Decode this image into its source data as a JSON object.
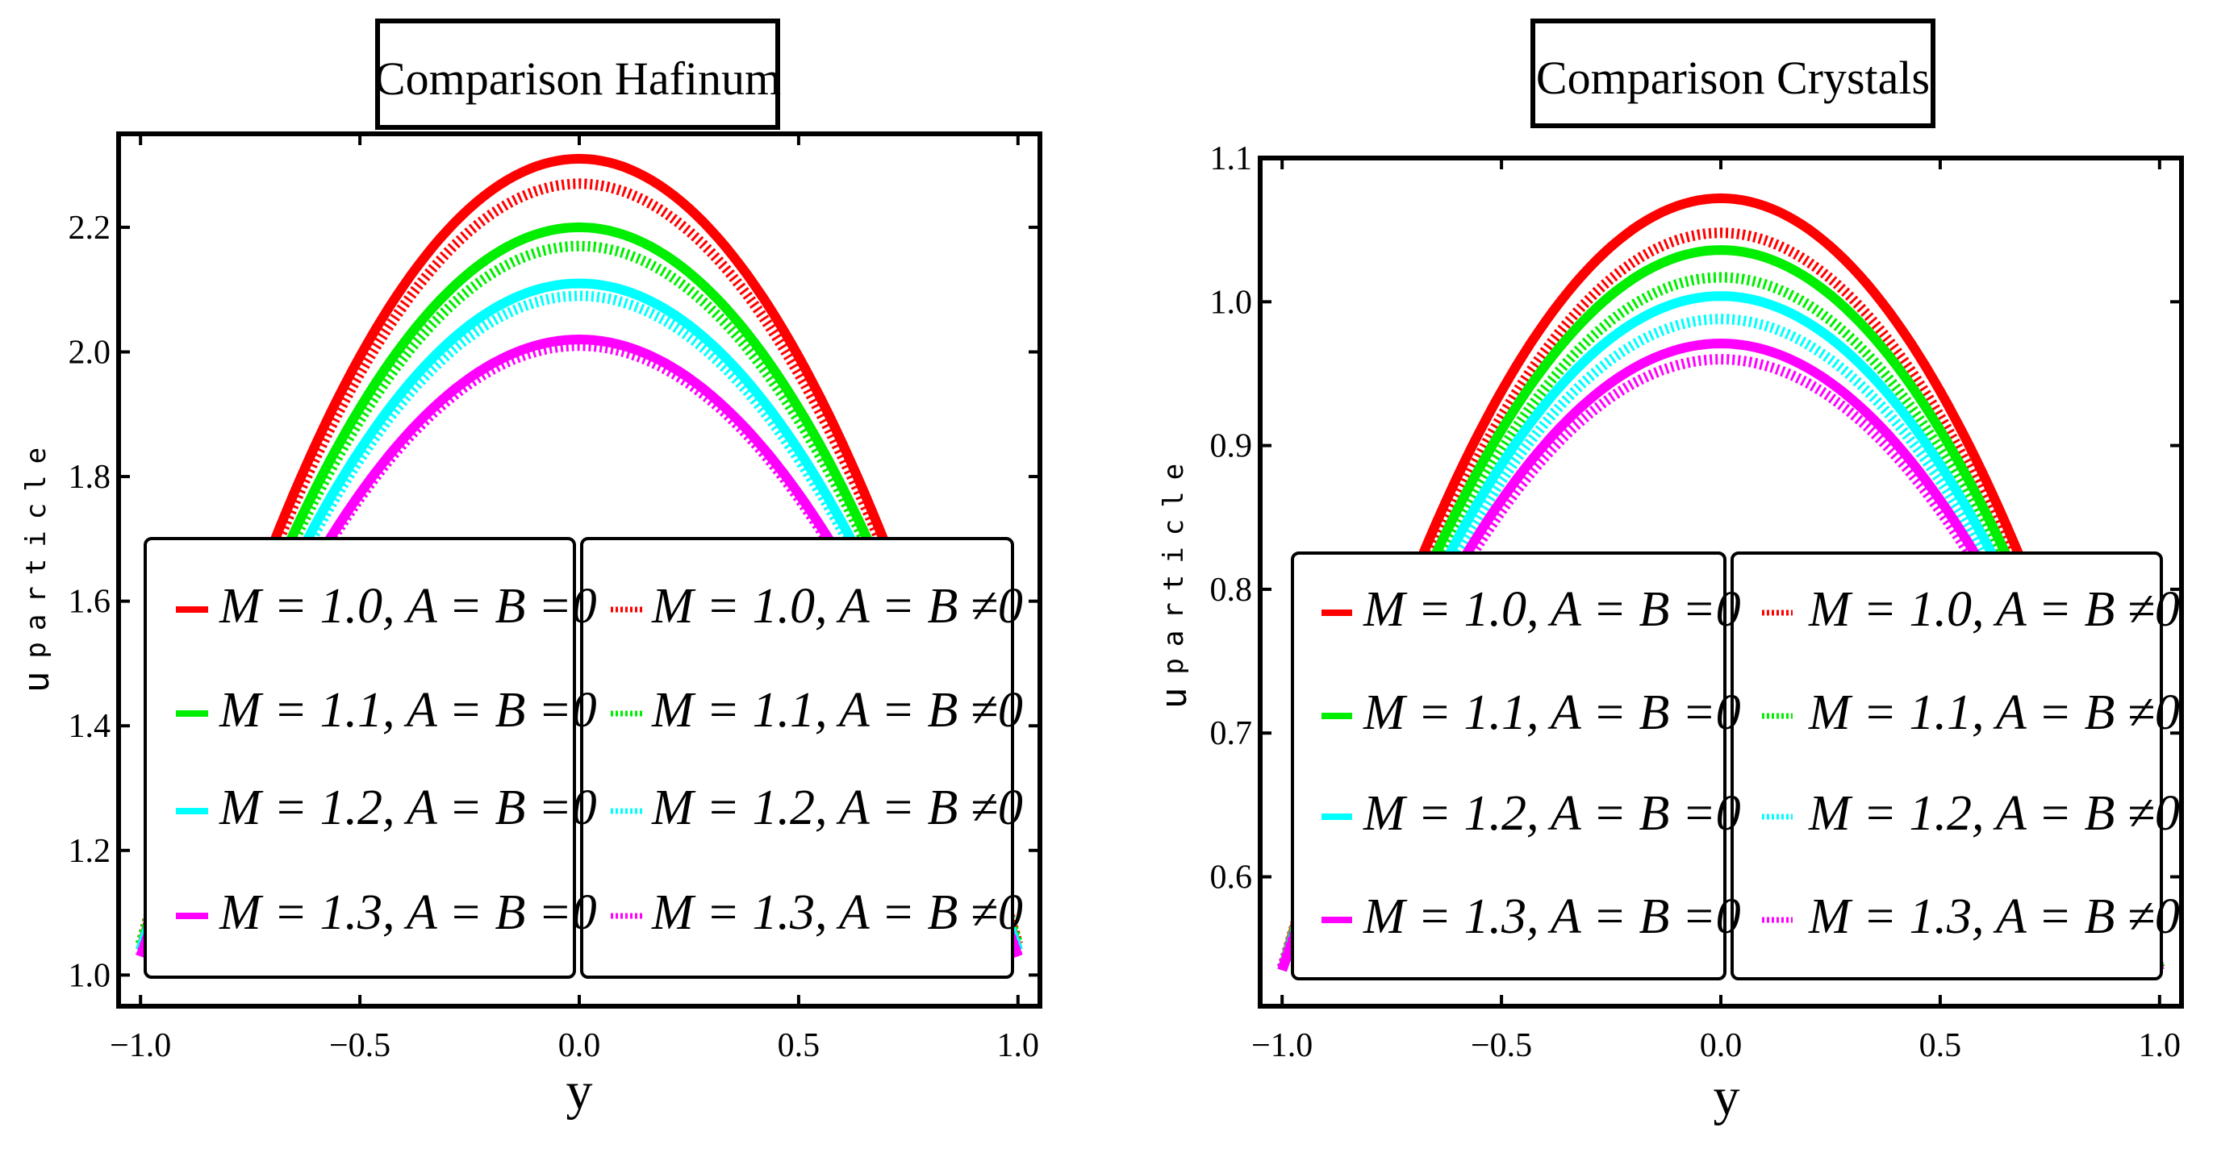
{
  "chart_data": [
    {
      "type": "line",
      "title": "Comparison Hafinum",
      "xlabel": "y",
      "ylabel_main": "u",
      "ylabel_sub": "particle",
      "xlim": [
        -1.05,
        1.05
      ],
      "ylim": [
        0.95,
        2.35
      ],
      "xticks": [
        -1.0,
        -0.5,
        0.0,
        0.5,
        1.0
      ],
      "xtick_labels": [
        "−1.0",
        "−0.5",
        "0.0",
        "0.5",
        "1.0"
      ],
      "yticks": [
        1.0,
        1.2,
        1.4,
        1.6,
        1.8,
        2.0,
        2.2
      ],
      "ytick_labels": [
        "1.0",
        "1.2",
        "1.4",
        "1.6",
        "1.8",
        "2.0",
        "2.2"
      ],
      "grid": false,
      "legend_placement": "bottom-center",
      "series": [
        {
          "name": "M = 1.0, A = B =0",
          "color": "#ff0000",
          "style": "solid",
          "x": [
            -1,
            0,
            1
          ],
          "y": [
            1.04,
            2.31,
            1.04
          ]
        },
        {
          "name": "M = 1.1, A = B =0",
          "color": "#00ee00",
          "style": "solid",
          "x": [
            -1,
            0,
            1
          ],
          "y": [
            1.04,
            2.2,
            1.04
          ]
        },
        {
          "name": "M = 1.2, A = B =0",
          "color": "#00ffff",
          "style": "solid",
          "x": [
            -1,
            0,
            1
          ],
          "y": [
            1.04,
            2.11,
            1.04
          ]
        },
        {
          "name": "M = 1.3, A = B =0",
          "color": "#ff00ff",
          "style": "solid",
          "x": [
            -1,
            0,
            1
          ],
          "y": [
            1.03,
            2.02,
            1.03
          ]
        },
        {
          "name": "M = 1.0, A = B ≠0",
          "color": "#ff0000",
          "style": "dotted",
          "x": [
            -1,
            0,
            1
          ],
          "y": [
            1.05,
            2.27,
            1.05
          ]
        },
        {
          "name": "M = 1.1, A = B ≠0",
          "color": "#00ee00",
          "style": "dotted",
          "x": [
            -1,
            0,
            1
          ],
          "y": [
            1.05,
            2.17,
            1.05
          ]
        },
        {
          "name": "M = 1.2, A = B ≠0",
          "color": "#00ffff",
          "style": "dotted",
          "x": [
            -1,
            0,
            1
          ],
          "y": [
            1.04,
            2.09,
            1.04
          ]
        },
        {
          "name": "M = 1.3, A = B ≠0",
          "color": "#ff00ff",
          "style": "dotted",
          "x": [
            -1,
            0,
            1
          ],
          "y": [
            1.03,
            2.01,
            1.03
          ]
        }
      ]
    },
    {
      "type": "line",
      "title": "Comparison Crystals",
      "xlabel": "y",
      "ylabel_main": "u",
      "ylabel_sub": "particle",
      "xlim": [
        -1.05,
        1.05
      ],
      "ylim": [
        0.51,
        1.1
      ],
      "xticks": [
        -1.0,
        -0.5,
        0.0,
        0.5,
        1.0
      ],
      "xtick_labels": [
        "−1.0",
        "−0.5",
        "0.0",
        "0.5",
        "1.0"
      ],
      "yticks": [
        0.6,
        0.7,
        0.8,
        0.9,
        1.0,
        1.1
      ],
      "ytick_labels": [
        "0.6",
        "0.7",
        "0.8",
        "0.9",
        "1.0",
        "1.1"
      ],
      "grid": false,
      "legend_placement": "bottom-center",
      "series": [
        {
          "name": "M = 1.0, A = B =0",
          "color": "#ff0000",
          "style": "solid",
          "x": [
            -1,
            0,
            1
          ],
          "y": [
            0.535,
            1.072,
            0.535
          ]
        },
        {
          "name": "M = 1.1, A = B =0",
          "color": "#00ee00",
          "style": "solid",
          "x": [
            -1,
            0,
            1
          ],
          "y": [
            0.535,
            1.036,
            0.535
          ]
        },
        {
          "name": "M = 1.2, A = B =0",
          "color": "#00ffff",
          "style": "solid",
          "x": [
            -1,
            0,
            1
          ],
          "y": [
            0.535,
            1.004,
            0.535
          ]
        },
        {
          "name": "M = 1.3, A = B =0",
          "color": "#ff00ff",
          "style": "solid",
          "x": [
            -1,
            0,
            1
          ],
          "y": [
            0.535,
            0.971,
            0.535
          ]
        },
        {
          "name": "M = 1.0, A = B ≠0",
          "color": "#ff0000",
          "style": "dotted",
          "x": [
            -1,
            0,
            1
          ],
          "y": [
            0.537,
            1.048,
            0.537
          ]
        },
        {
          "name": "M = 1.1, A = B ≠0",
          "color": "#00ee00",
          "style": "dotted",
          "x": [
            -1,
            0,
            1
          ],
          "y": [
            0.537,
            1.017,
            0.537
          ]
        },
        {
          "name": "M = 1.2, A = B ≠0",
          "color": "#00ffff",
          "style": "dotted",
          "x": [
            -1,
            0,
            1
          ],
          "y": [
            0.537,
            0.988,
            0.537
          ]
        },
        {
          "name": "M = 1.3, A = B ≠0",
          "color": "#ff00ff",
          "style": "dotted",
          "x": [
            -1,
            0,
            1
          ],
          "y": [
            0.537,
            0.96,
            0.537
          ]
        }
      ]
    }
  ]
}
